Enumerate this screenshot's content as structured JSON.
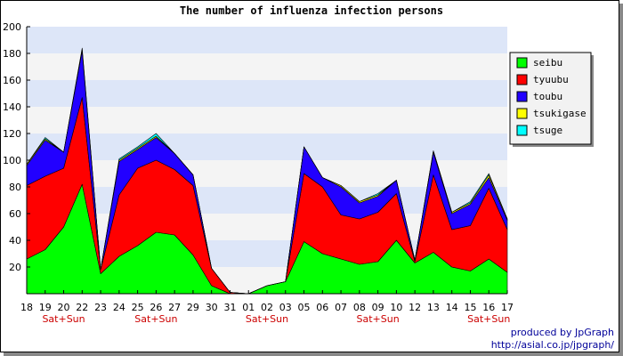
{
  "chart_data": {
    "type": "area",
    "stacked": true,
    "title": "The number of influenza infection persons",
    "xlabel": "",
    "ylabel": "",
    "ylim": [
      0,
      200
    ],
    "yticks": [
      20,
      40,
      60,
      80,
      100,
      120,
      140,
      160,
      180,
      200
    ],
    "grid": "horizontal bands",
    "legend_position": "top-right",
    "categories": [
      "18",
      "19",
      "20",
      "22",
      "23",
      "24",
      "25",
      "26",
      "27",
      "29",
      "30",
      "31",
      "01",
      "02",
      "03",
      "05",
      "06",
      "07",
      "08",
      "09",
      "10",
      "12",
      "13",
      "14",
      "15",
      "16",
      "17"
    ],
    "x_tick_labels": [
      "18",
      "19",
      "20",
      "22",
      "23",
      "24",
      "25",
      "26",
      "27",
      "29",
      "30",
      "31",
      "01",
      "02",
      "03",
      "05",
      "06",
      "07",
      "08",
      "09",
      "10",
      "12",
      "13",
      "14",
      "15",
      "16",
      "17"
    ],
    "weekend_markers": [
      {
        "index": 2,
        "label": "Sat+Sun"
      },
      {
        "index": 7,
        "label": "Sat+Sun"
      },
      {
        "index": 13,
        "label": "Sat+Sun"
      },
      {
        "index": 19,
        "label": "Sat+Sun"
      },
      {
        "index": 25,
        "label": "Sat+Sun"
      }
    ],
    "series": [
      {
        "name": "seibu",
        "color": "#00ff00",
        "values": [
          26,
          33,
          50,
          82,
          15,
          28,
          36,
          46,
          44,
          29,
          6,
          0,
          0,
          6,
          9,
          39,
          30,
          26,
          22,
          24,
          40,
          23,
          31,
          20,
          17,
          26,
          16
        ]
      },
      {
        "name": "tyuubu",
        "color": "#ff0000",
        "values": [
          55,
          55,
          44,
          65,
          3,
          46,
          58,
          54,
          49,
          52,
          13,
          1,
          0,
          0,
          0,
          51,
          50,
          33,
          34,
          37,
          35,
          1,
          58,
          28,
          34,
          53,
          32
        ]
      },
      {
        "name": "toubu",
        "color": "#2200ff",
        "values": [
          15,
          27,
          12,
          35,
          0,
          25,
          14,
          17,
          12,
          8,
          0,
          0,
          0,
          0,
          0,
          20,
          7,
          21,
          12,
          12,
          10,
          1,
          17,
          12,
          16,
          8,
          7
        ]
      },
      {
        "name": "tsukigase",
        "color": "#ffff00",
        "values": [
          1,
          1,
          0,
          1,
          0,
          1,
          1,
          1,
          0,
          0,
          0,
          0,
          0,
          0,
          0,
          0,
          0,
          1,
          1,
          1,
          0,
          0,
          1,
          1,
          1,
          2,
          1
        ]
      },
      {
        "name": "tsuge",
        "color": "#00ffff",
        "values": [
          0,
          1,
          0,
          1,
          0,
          1,
          1,
          2,
          0,
          0,
          0,
          0,
          0,
          0,
          0,
          0,
          0,
          0,
          0,
          1,
          0,
          0,
          0,
          0,
          1,
          1,
          0
        ]
      }
    ]
  },
  "credits": {
    "line1": "produced by JpGraph",
    "line2": "http://asial.co.jp/jpgraph/"
  }
}
